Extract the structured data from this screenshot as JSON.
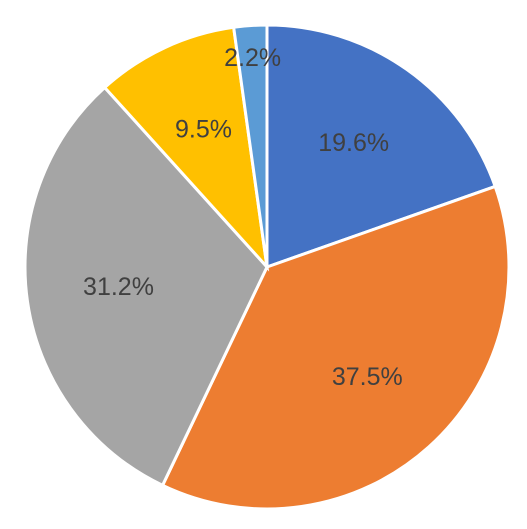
{
  "chart_data": {
    "type": "pie",
    "title": "",
    "values": [
      19.6,
      37.5,
      31.2,
      9.5,
      2.2
    ],
    "labels": [
      "19.6%",
      "37.5%",
      "31.2%",
      "9.5%",
      "2.2%"
    ],
    "colors": [
      "#4472C4",
      "#ED7D31",
      "#A5A5A5",
      "#FFC000",
      "#5B9BD5"
    ],
    "start_angle_deg": 0,
    "direction": "clockwise",
    "legend": "none"
  }
}
